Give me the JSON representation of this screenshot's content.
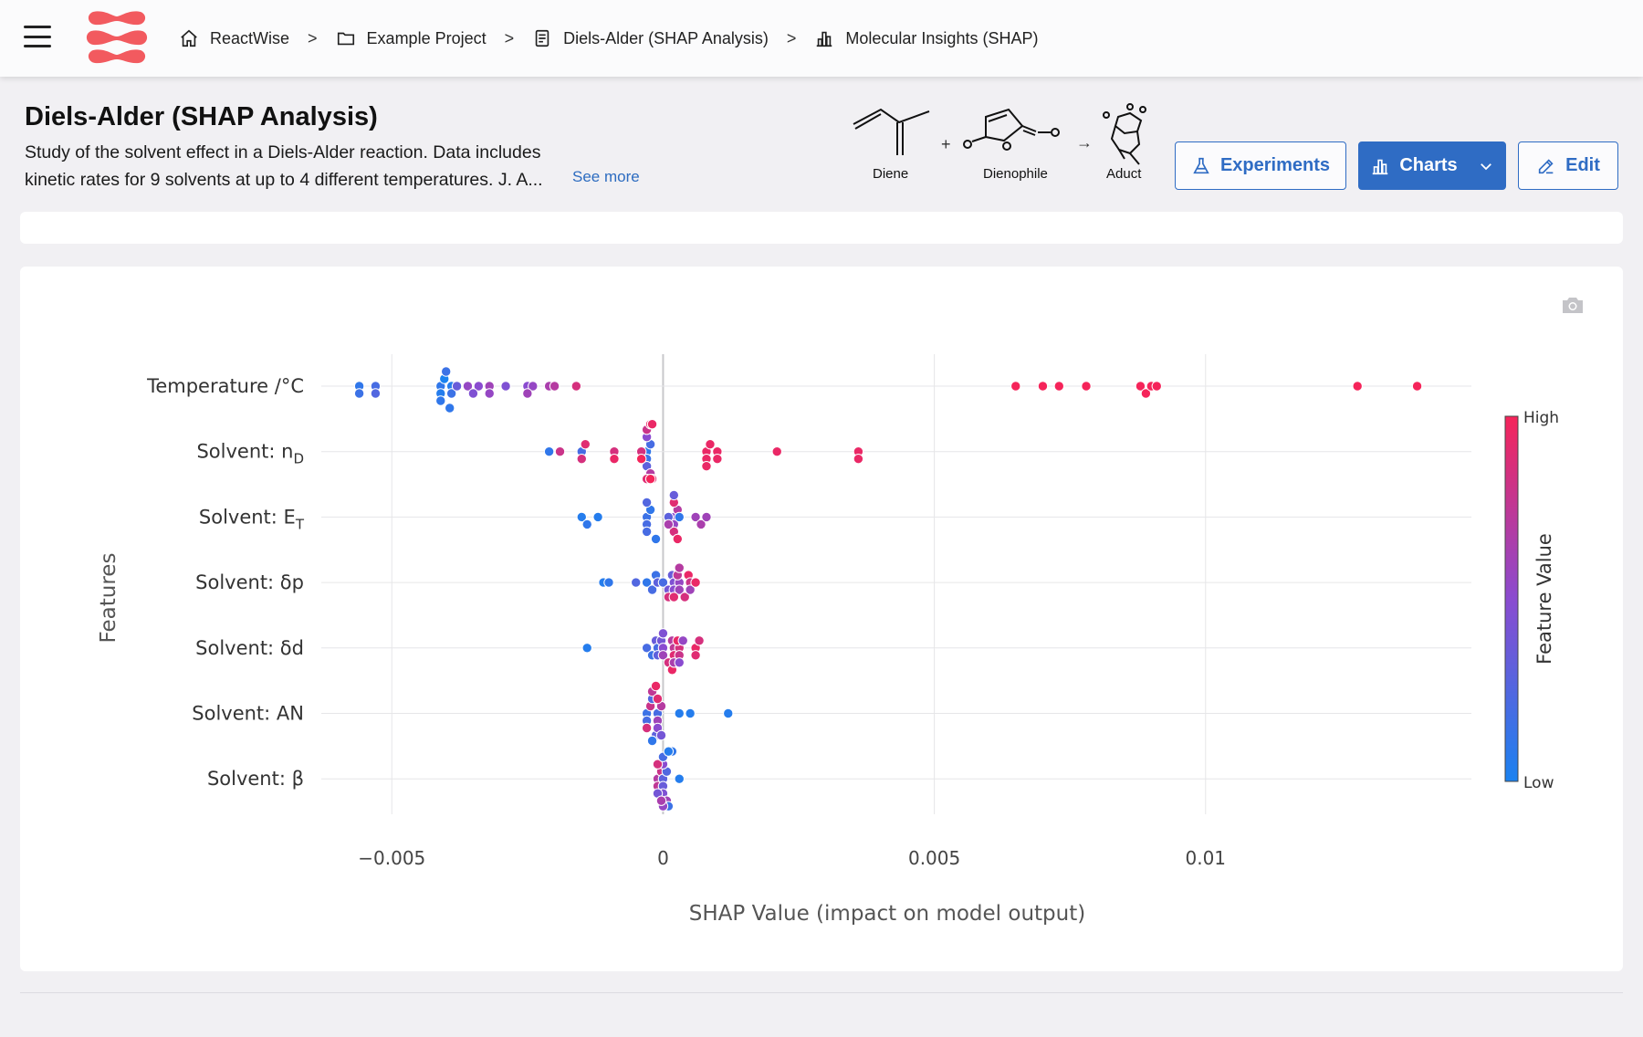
{
  "nav": {
    "breadcrumbs": [
      {
        "label": "ReactWise",
        "icon": "home-icon"
      },
      {
        "label": "Example Project",
        "icon": "folder-icon"
      },
      {
        "label": "Diels-Alder (SHAP Analysis)",
        "icon": "document-icon"
      },
      {
        "label": "Molecular Insights (SHAP)",
        "icon": "bar-chart-icon"
      }
    ],
    "separator": ">"
  },
  "header": {
    "title": "Diels-Alder (SHAP Analysis)",
    "description": "Study of the solvent effect in a Diels-Alder reaction. Data includes kinetic rates for 9 solvents at up to 4 different temperatures. J. A...",
    "see_more": "See more",
    "reaction": {
      "reactant1_label": "Diene",
      "plus": "+",
      "reactant2_label": "Dienophile",
      "arrow": "→",
      "product_label": "Aduct"
    }
  },
  "buttons": {
    "experiments": "Experiments",
    "charts": "Charts",
    "edit": "Edit"
  },
  "colors": {
    "accent": "#2f6cc4",
    "logo": "#f25a5f",
    "low": "#1a82f0",
    "high": "#f5245a"
  },
  "chart_data": {
    "type": "scatter",
    "xlabel": "SHAP Value (impact on model output)",
    "ylabel": "Features",
    "xlim": [
      -0.0063,
      0.0149
    ],
    "x_ticks": [
      {
        "value": -0.005,
        "label": "−0.005"
      },
      {
        "value": 0,
        "label": "0"
      },
      {
        "value": 0.005,
        "label": "0.005"
      },
      {
        "value": 0.01,
        "label": "0.01"
      }
    ],
    "colorbar": {
      "title": "Feature Value",
      "high_label": "High",
      "low_label": "Low"
    },
    "grid": true,
    "features": [
      {
        "name": "Temperature /°C",
        "points": [
          [
            -0.0056,
            0.1
          ],
          [
            -0.0056,
            0.15
          ],
          [
            -0.0053,
            0.2
          ],
          [
            -0.0053,
            0.25
          ],
          [
            -0.0041,
            0.1
          ],
          [
            -0.0041,
            0.05
          ],
          [
            -0.0041,
            0.0
          ],
          [
            -0.0041,
            0.1
          ],
          [
            -0.004,
            0.15
          ],
          [
            -0.004,
            0.1
          ],
          [
            -0.0039,
            0.05
          ],
          [
            -0.0039,
            0.15
          ],
          [
            -0.0038,
            0.35
          ],
          [
            -0.0036,
            0.55
          ],
          [
            -0.0034,
            0.5
          ],
          [
            -0.0035,
            0.45
          ],
          [
            -0.0032,
            0.6
          ],
          [
            -0.0032,
            0.55
          ],
          [
            -0.0029,
            0.45
          ],
          [
            -0.0025,
            0.5
          ],
          [
            -0.0024,
            0.55
          ],
          [
            -0.0025,
            0.6
          ],
          [
            -0.0021,
            0.65
          ],
          [
            -0.002,
            0.7
          ],
          [
            -0.0016,
            0.85
          ],
          [
            0.0065,
            1.0
          ],
          [
            0.007,
            1.0
          ],
          [
            0.0073,
            1.0
          ],
          [
            0.0078,
            1.0
          ],
          [
            0.0088,
            1.0
          ],
          [
            0.0089,
            1.0
          ],
          [
            0.009,
            1.0
          ],
          [
            0.0091,
            1.0
          ],
          [
            0.0128,
            1.0
          ],
          [
            0.0139,
            1.0
          ]
        ]
      },
      {
        "name": "Solvent: nD",
        "label_main": "Solvent: n",
        "label_sub": "D",
        "points": [
          [
            -0.0021,
            0.1
          ],
          [
            -0.0019,
            0.8
          ],
          [
            -0.0015,
            0.2
          ],
          [
            -0.0015,
            0.85
          ],
          [
            -0.0015,
            0.9
          ],
          [
            -0.0009,
            0.85
          ],
          [
            -0.0009,
            0.95
          ],
          [
            -0.0003,
            0.1
          ],
          [
            -0.0003,
            0.15
          ],
          [
            -0.0003,
            0.2
          ],
          [
            -0.0003,
            0.3
          ],
          [
            -0.0003,
            0.5
          ],
          [
            -0.0003,
            0.7
          ],
          [
            -0.0003,
            0.8
          ],
          [
            -0.0003,
            0.9
          ],
          [
            -0.0003,
            0.95
          ],
          [
            -0.0004,
            0.85
          ],
          [
            -0.0004,
            1.0
          ],
          [
            -0.0002,
            0.9
          ],
          [
            -0.0002,
            1.0
          ],
          [
            -0.0003,
            1.0
          ],
          [
            -0.0002,
            0.95
          ],
          [
            0.0008,
            0.95
          ],
          [
            0.0008,
            0.95
          ],
          [
            0.0008,
            0.95
          ],
          [
            0.0008,
            0.95
          ],
          [
            0.001,
            0.95
          ],
          [
            0.001,
            0.95
          ],
          [
            0.0021,
            0.95
          ],
          [
            0.0036,
            0.95
          ],
          [
            0.0036,
            0.95
          ]
        ]
      },
      {
        "name": "Solvent: ET",
        "label_main": "Solvent: E",
        "label_sub": "T",
        "points": [
          [
            -0.0015,
            0.05
          ],
          [
            -0.0014,
            0.1
          ],
          [
            -0.0012,
            0.05
          ],
          [
            -0.0003,
            0.15
          ],
          [
            -0.0003,
            0.2
          ],
          [
            -0.0003,
            0.1
          ],
          [
            -0.0003,
            0.2
          ],
          [
            -0.0003,
            0.25
          ],
          [
            -0.0002,
            0.1
          ],
          [
            0.0002,
            0.5
          ],
          [
            0.0002,
            0.55
          ],
          [
            0.0002,
            0.7
          ],
          [
            0.0002,
            0.85
          ],
          [
            0.0002,
            0.9
          ],
          [
            0.0002,
            0.95
          ],
          [
            0.0001,
            0.3
          ],
          [
            0.0002,
            0.35
          ],
          [
            0.0003,
            0.1
          ],
          [
            0.0001,
            0.65
          ],
          [
            0.0006,
            0.6
          ],
          [
            0.0007,
            0.65
          ],
          [
            0.0008,
            0.6
          ]
        ]
      },
      {
        "name": "Solvent: δp",
        "points": [
          [
            -0.0011,
            0.05
          ],
          [
            -0.001,
            0.1
          ],
          [
            -0.0005,
            0.25
          ],
          [
            -0.0003,
            0.1
          ],
          [
            -0.0002,
            0.2
          ],
          [
            -0.0002,
            0.15
          ],
          [
            -0.0001,
            0.3
          ],
          [
            0.0,
            0.2
          ],
          [
            0.0001,
            0.4
          ],
          [
            0.0001,
            0.35
          ],
          [
            0.0002,
            0.45
          ],
          [
            0.0002,
            0.5
          ],
          [
            0.0003,
            0.55
          ],
          [
            0.0003,
            0.6
          ],
          [
            0.0002,
            0.75
          ],
          [
            0.0001,
            0.85
          ],
          [
            0.0002,
            0.9
          ],
          [
            0.0004,
            0.95
          ],
          [
            0.0004,
            0.85
          ],
          [
            0.0005,
            0.8
          ],
          [
            0.0005,
            0.6
          ],
          [
            0.0006,
            0.95
          ],
          [
            0.0003,
            0.7
          ]
        ]
      },
      {
        "name": "Solvent: δd",
        "points": [
          [
            -0.0014,
            0.05
          ],
          [
            -0.0003,
            0.2
          ],
          [
            -0.0002,
            0.15
          ],
          [
            -0.0002,
            0.35
          ],
          [
            -0.0001,
            0.2
          ],
          [
            -0.0001,
            0.3
          ],
          [
            -0.0001,
            0.4
          ],
          [
            0.0,
            0.5
          ],
          [
            0.0,
            0.6
          ],
          [
            0.0001,
            0.7
          ],
          [
            0.0002,
            0.75
          ],
          [
            0.0001,
            0.85
          ],
          [
            0.0002,
            0.9
          ],
          [
            0.0,
            0.45
          ],
          [
            0.0003,
            0.85
          ],
          [
            0.0003,
            0.8
          ],
          [
            0.0002,
            0.95
          ],
          [
            0.0001,
            0.95
          ],
          [
            0.0002,
            0.65
          ],
          [
            0.0003,
            0.55
          ],
          [
            0.0003,
            0.5
          ],
          [
            0.0006,
            0.95
          ],
          [
            0.0006,
            0.9
          ],
          [
            0.0006,
            0.85
          ]
        ]
      },
      {
        "name": "Solvent: AN",
        "points": [
          [
            -0.0003,
            0.15
          ],
          [
            -0.0003,
            0.2
          ],
          [
            -0.0003,
            0.8
          ],
          [
            -0.0003,
            0.85
          ],
          [
            -0.0002,
            0.25
          ],
          [
            -0.0002,
            0.3
          ],
          [
            -0.0002,
            0.75
          ],
          [
            -0.0002,
            0.9
          ],
          [
            -0.0002,
            0.95
          ],
          [
            -0.0001,
            0.2
          ],
          [
            -0.0001,
            0.6
          ],
          [
            -0.0001,
            0.7
          ],
          [
            -0.0001,
            0.5
          ],
          [
            -0.0001,
            0.9
          ],
          [
            -0.0002,
            0.1
          ],
          [
            -0.0001,
            0.4
          ],
          [
            0.0003,
            0.05
          ],
          [
            0.0005,
            0.05
          ],
          [
            0.0012,
            0.05
          ]
        ]
      },
      {
        "name": "Solvent: β",
        "points": [
          [
            -0.0001,
            0.7
          ],
          [
            -0.0001,
            0.75
          ],
          [
            -0.0001,
            0.8
          ],
          [
            0.0,
            0.3
          ],
          [
            0.0,
            0.35
          ],
          [
            0.0,
            0.25
          ],
          [
            0.0,
            0.45
          ],
          [
            0.0,
            0.5
          ],
          [
            -0.0001,
            0.4
          ],
          [
            0.0,
            0.6
          ],
          [
            -0.0001,
            0.85
          ],
          [
            0.0,
            0.2
          ],
          [
            0.0001,
            0.15
          ],
          [
            0.0001,
            0.1
          ],
          [
            0.0,
            0.55
          ],
          [
            -0.0001,
            0.65
          ],
          [
            0.0001,
            0.05
          ],
          [
            0.0003,
            0.05
          ]
        ]
      }
    ]
  }
}
